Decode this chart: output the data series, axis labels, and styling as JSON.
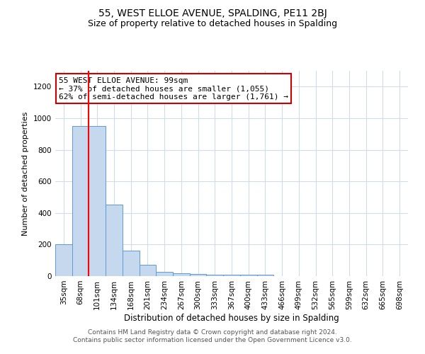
{
  "title1": "55, WEST ELLOE AVENUE, SPALDING, PE11 2BJ",
  "title2": "Size of property relative to detached houses in Spalding",
  "xlabel": "Distribution of detached houses by size in Spalding",
  "ylabel": "Number of detached properties",
  "bar_labels": [
    "35sqm",
    "68sqm",
    "101sqm",
    "134sqm",
    "168sqm",
    "201sqm",
    "234sqm",
    "267sqm",
    "300sqm",
    "333sqm",
    "367sqm",
    "400sqm",
    "433sqm",
    "466sqm",
    "499sqm",
    "532sqm",
    "565sqm",
    "599sqm",
    "632sqm",
    "665sqm",
    "698sqm"
  ],
  "bar_values": [
    200,
    950,
    950,
    455,
    160,
    70,
    25,
    18,
    15,
    10,
    10,
    10,
    10,
    0,
    0,
    0,
    0,
    0,
    0,
    0,
    0
  ],
  "bar_color": "#c5d8ed",
  "bar_edge_color": "#5b9bd5",
  "red_line_index": 2,
  "annotation_line1": "55 WEST ELLOE AVENUE: 99sqm",
  "annotation_line2": "← 37% of detached houses are smaller (1,055)",
  "annotation_line3": "62% of semi-detached houses are larger (1,761) →",
  "annotation_box_color": "#ffffff",
  "annotation_box_edge_color": "#cc0000",
  "ylim": [
    0,
    1300
  ],
  "yticks": [
    0,
    200,
    400,
    600,
    800,
    1000,
    1200
  ],
  "footer1": "Contains HM Land Registry data © Crown copyright and database right 2024.",
  "footer2": "Contains public sector information licensed under the Open Government Licence v3.0.",
  "background_color": "#ffffff",
  "grid_color": "#d0dce8",
  "title1_fontsize": 10,
  "title2_fontsize": 9,
  "xlabel_fontsize": 8.5,
  "ylabel_fontsize": 8,
  "tick_fontsize": 7.5,
  "annotation_fontsize": 8,
  "footer_fontsize": 6.5
}
